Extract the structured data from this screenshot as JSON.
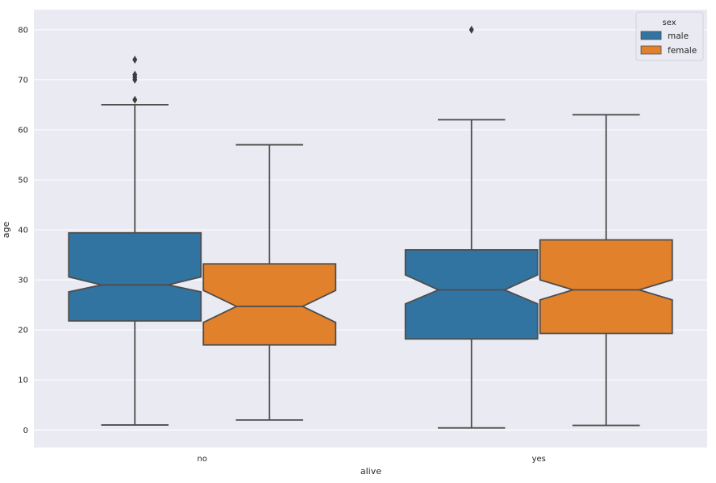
{
  "chart_data": {
    "type": "boxplot",
    "notched": true,
    "xlabel": "alive",
    "ylabel": "age",
    "categories": [
      "no",
      "yes"
    ],
    "ylim": [
      -3.5,
      84
    ],
    "yticks": [
      0,
      10,
      20,
      30,
      40,
      50,
      60,
      70,
      80
    ],
    "grid": true,
    "background": "#eaeaf2",
    "legend": {
      "title": "sex",
      "placement": "top-right",
      "entries": [
        "male",
        "female"
      ]
    },
    "series": [
      {
        "name": "male",
        "color": "#3274a1",
        "boxes": [
          {
            "category": "no",
            "whisker_low": 1,
            "q1": 21.8,
            "notch_low": 27.6,
            "median": 29,
            "notch_high": 30.6,
            "q3": 39.4,
            "whisker_high": 65,
            "outliers": [
              66,
              70,
              70.5,
              71,
              74
            ]
          },
          {
            "category": "yes",
            "whisker_low": 0.42,
            "q1": 18.2,
            "notch_low": 25.2,
            "median": 28,
            "notch_high": 31,
            "q3": 36,
            "whisker_high": 62,
            "outliers": [
              80
            ]
          }
        ]
      },
      {
        "name": "female",
        "color": "#e1812c",
        "boxes": [
          {
            "category": "no",
            "whisker_low": 2,
            "q1": 17,
            "notch_low": 21.5,
            "median": 24.7,
            "notch_high": 27.9,
            "q3": 33.2,
            "whisker_high": 57,
            "outliers": []
          },
          {
            "category": "yes",
            "whisker_low": 0.92,
            "q1": 19.3,
            "notch_low": 26,
            "median": 28,
            "notch_high": 30,
            "q3": 38,
            "whisker_high": 63,
            "outliers": []
          }
        ]
      }
    ]
  }
}
